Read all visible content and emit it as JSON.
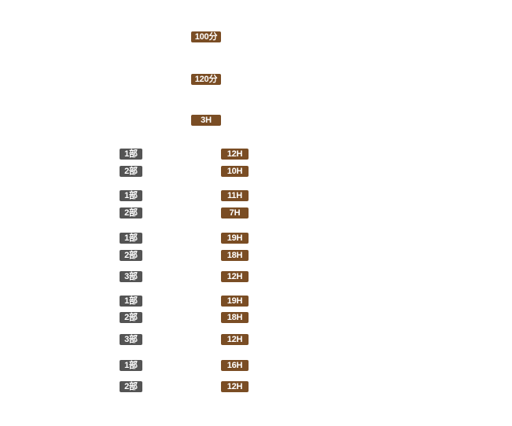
{
  "plans": [
    {
      "label": "100分"
    },
    {
      "label": "120分"
    },
    {
      "label": "3H"
    }
  ],
  "groups": [
    {
      "rows": [
        {
          "part": "1部",
          "hours": "12H"
        },
        {
          "part": "2部",
          "hours": "10H"
        }
      ]
    },
    {
      "rows": [
        {
          "part": "1部",
          "hours": "11H"
        },
        {
          "part": "2部",
          "hours": "7H"
        }
      ]
    },
    {
      "rows": [
        {
          "part": "1部",
          "hours": "19H"
        },
        {
          "part": "2部",
          "hours": "18H"
        },
        {
          "part": "3部",
          "hours": "12H"
        }
      ]
    },
    {
      "rows": [
        {
          "part": "1部",
          "hours": "19H"
        },
        {
          "part": "2部",
          "hours": "18H"
        },
        {
          "part": "3部",
          "hours": "12H"
        }
      ]
    },
    {
      "rows": [
        {
          "part": "1部",
          "hours": "16H"
        },
        {
          "part": "2部",
          "hours": "12H"
        }
      ]
    }
  ]
}
